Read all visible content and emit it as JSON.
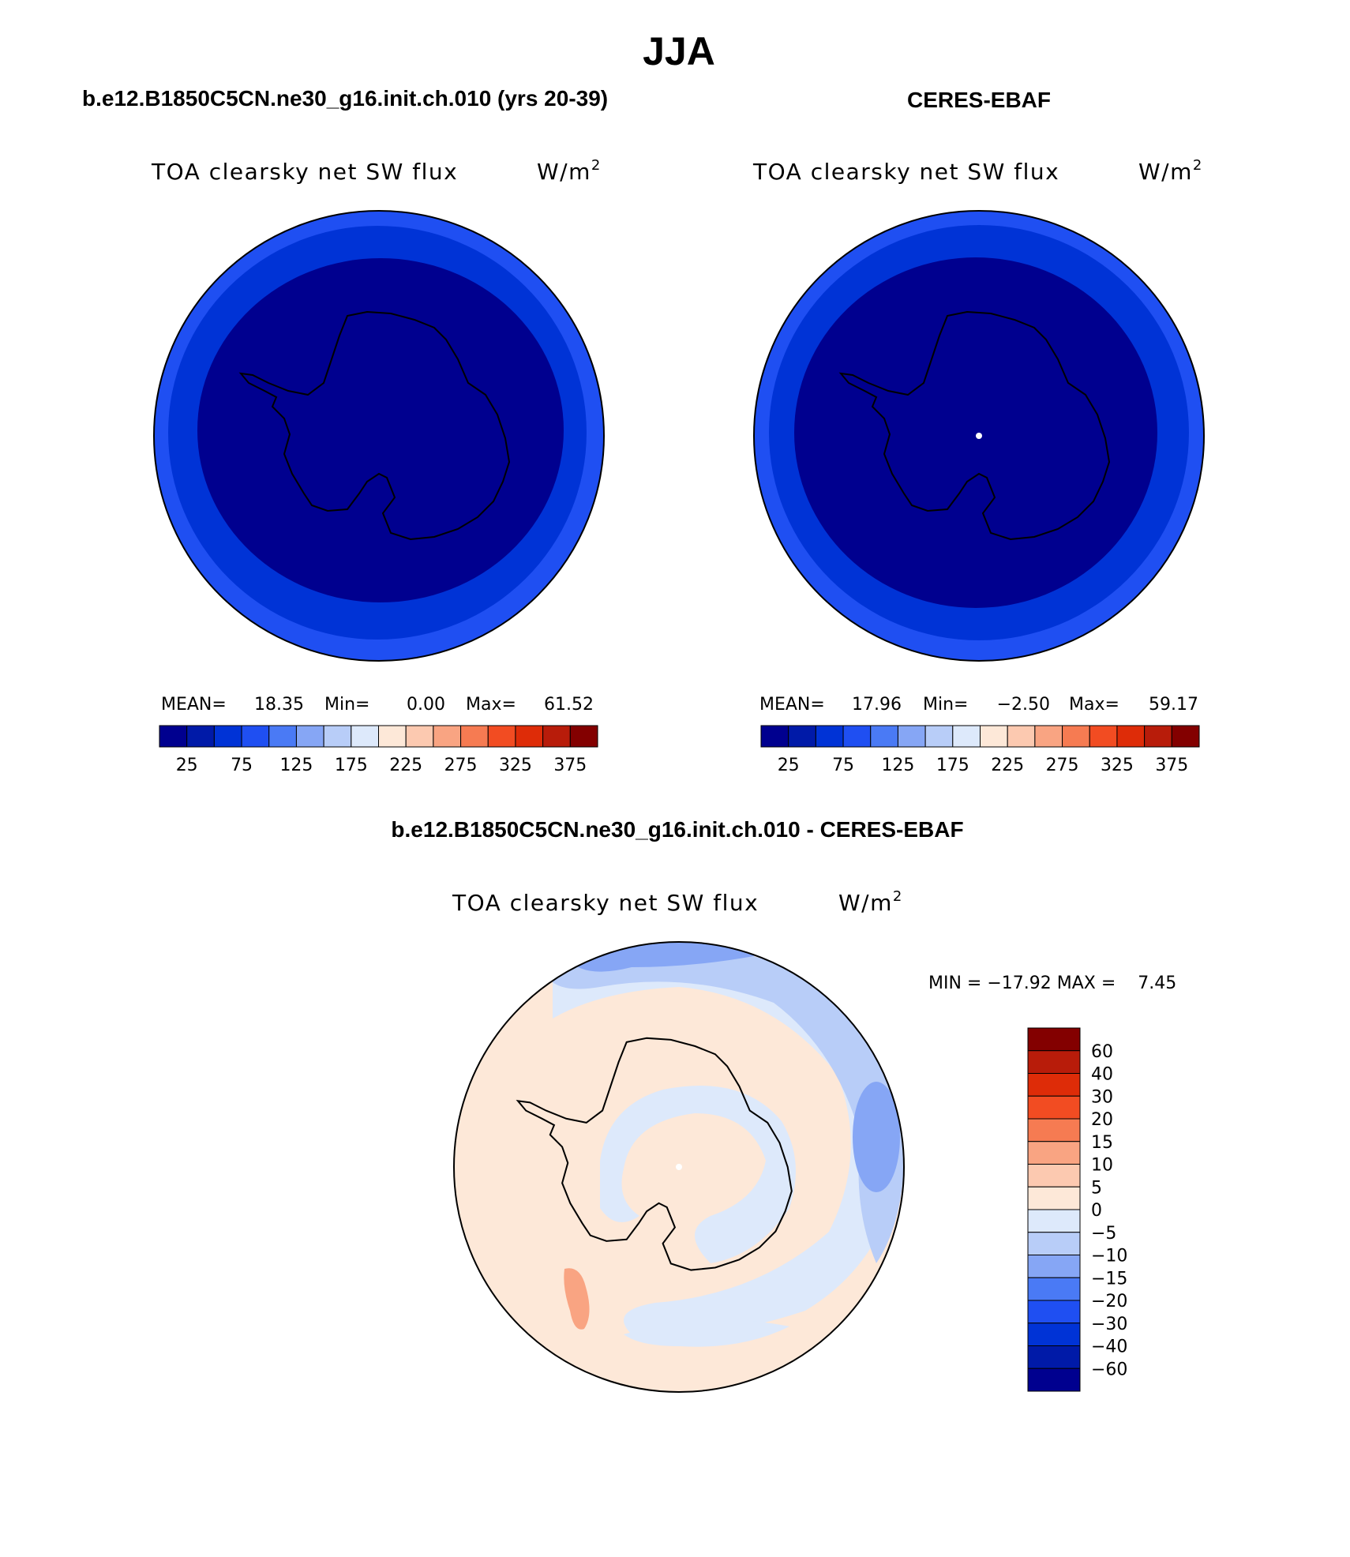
{
  "colors": {
    "abs_scale": [
      "#00008f",
      "#001aa8",
      "#0033d6",
      "#1f4ff2",
      "#4a7af5",
      "#86a6f5",
      "#b8cdf8",
      "#dde9fb",
      "#fde8d8",
      "#fcc9b0",
      "#f9a482",
      "#f67b52",
      "#f24c22",
      "#de2c08",
      "#b81c0a",
      "#830000"
    ],
    "diff_scale": [
      "#00008f",
      "#001aa8",
      "#0033d6",
      "#1f4ff2",
      "#4a7af5",
      "#86a6f5",
      "#b8cdf8",
      "#dde9fb",
      "#fde8d8",
      "#fcc9b0",
      "#f9a482",
      "#f67b52",
      "#f24c22",
      "#de2c08",
      "#b81c0a",
      "#830000"
    ],
    "outer_ring": "#1f4ff2",
    "middle_ring": "#0033d6",
    "interior": "#00008f",
    "diff_background": "#fde8d8",
    "diff_light_blue": "#dde9fb",
    "diff_mid_blue": "#b8cdf8",
    "diff_blue": "#86a6f5",
    "diff_strong_blue": "#4a7af5",
    "diff_pink": "#f9a482"
  },
  "chart_data": [
    {
      "type": "heatmap",
      "projection": "south-polar-stereographic",
      "panel_title": "b.e12.B1850C5CN.ne30_g16.init.ch.010 (yrs 20-39)",
      "variable": "TOA clearsky net SW flux",
      "units": "W/m",
      "units_superscript": "2",
      "stats": {
        "mean_label": "MEAN=",
        "mean": "18.35",
        "min_label": "Min=",
        "min": "0.00",
        "max_label": "Max=",
        "max": "61.52"
      },
      "colorbar": {
        "orientation": "horizontal",
        "tick_labels": [
          "25",
          "75",
          "125",
          "175",
          "225",
          "275",
          "325",
          "375"
        ]
      }
    },
    {
      "type": "heatmap",
      "projection": "south-polar-stereographic",
      "panel_title": "CERES-EBAF",
      "variable": "TOA clearsky net SW flux",
      "units": "W/m",
      "units_superscript": "2",
      "stats": {
        "mean_label": "MEAN=",
        "mean": "17.96",
        "min_label": "Min=",
        "min": "−2.50",
        "max_label": "Max=",
        "max": "59.17"
      },
      "colorbar": {
        "orientation": "horizontal",
        "tick_labels": [
          "25",
          "75",
          "125",
          "175",
          "225",
          "275",
          "325",
          "375"
        ]
      }
    },
    {
      "type": "heatmap",
      "projection": "south-polar-stereographic",
      "panel_title": "b.e12.B1850C5CN.ne30_g16.init.ch.010 - CERES-EBAF",
      "variable": "TOA clearsky net SW flux",
      "units": "W/m",
      "units_superscript": "2",
      "stats_line": "MIN = −17.92 MAX =    7.45",
      "colorbar": {
        "orientation": "vertical",
        "tick_labels": [
          "60",
          "40",
          "30",
          "20",
          "15",
          "10",
          "5",
          "0",
          "−5",
          "−10",
          "−15",
          "−20",
          "−30",
          "−40",
          "−60"
        ]
      }
    }
  ],
  "figure": {
    "title": "JJA"
  }
}
